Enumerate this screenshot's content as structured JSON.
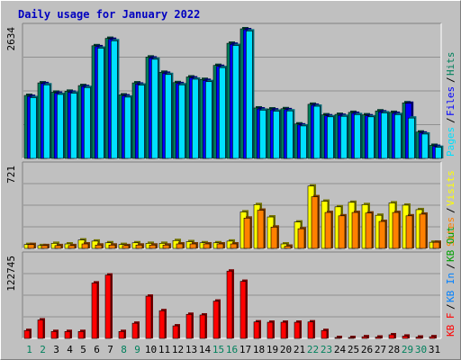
{
  "chart_data": [
    {
      "type": "bar",
      "title": "Daily usage for January 2022",
      "ymax_label": "2634",
      "ylim": [
        0,
        2634
      ],
      "categories": [
        "1",
        "2",
        "3",
        "4",
        "5",
        "6",
        "7",
        "8",
        "9",
        "10",
        "11",
        "12",
        "13",
        "14",
        "15",
        "16",
        "17",
        "18",
        "19",
        "20",
        "21",
        "22",
        "23",
        "24",
        "25",
        "26",
        "27",
        "28",
        "29",
        "30",
        "31"
      ],
      "weekend_days": [
        "1",
        "2",
        "8",
        "9",
        "15",
        "16",
        "22",
        "23",
        "29",
        "30"
      ],
      "legend": [
        "Pages",
        "Files",
        "Hits"
      ],
      "series": [
        {
          "name": "Hits",
          "color": "#00805c",
          "values": [
            1280,
            1535,
            1345,
            1365,
            1480,
            2290,
            2440,
            1290,
            1535,
            2060,
            1750,
            1540,
            1655,
            1605,
            1890,
            2340,
            2634,
            1025,
            1005,
            1010,
            700,
            1100,
            885,
            895,
            935,
            885,
            965,
            935,
            1130,
            535,
            265
          ]
        },
        {
          "name": "Files",
          "color": "#0000ff",
          "values": [
            1260,
            1520,
            1325,
            1345,
            1460,
            2270,
            2420,
            1270,
            1510,
            2040,
            1730,
            1520,
            1635,
            1585,
            1870,
            2320,
            2615,
            1005,
            985,
            990,
            680,
            1080,
            865,
            875,
            915,
            865,
            945,
            915,
            1120,
            515,
            245
          ]
        },
        {
          "name": "Pages",
          "color": "#00e0ff",
          "values": [
            1235,
            1495,
            1300,
            1325,
            1440,
            2240,
            2390,
            1245,
            1490,
            2015,
            1705,
            1495,
            1610,
            1560,
            1845,
            2295,
            2590,
            980,
            960,
            965,
            660,
            1060,
            845,
            855,
            890,
            845,
            925,
            890,
            820,
            495,
            225
          ]
        }
      ]
    },
    {
      "type": "bar",
      "ymax_label": "721",
      "ylim": [
        0,
        721
      ],
      "categories": [
        "1",
        "2",
        "3",
        "4",
        "5",
        "6",
        "7",
        "8",
        "9",
        "10",
        "11",
        "12",
        "13",
        "14",
        "15",
        "16",
        "17",
        "18",
        "19",
        "20",
        "21",
        "22",
        "23",
        "24",
        "25",
        "26",
        "27",
        "28",
        "29",
        "30",
        "31"
      ],
      "legend": [
        "Sites",
        "Visits"
      ],
      "series": [
        {
          "name": "Visits",
          "color": "#ffff00",
          "values": [
            35,
            25,
            45,
            40,
            75,
            65,
            50,
            35,
            50,
            45,
            45,
            70,
            60,
            50,
            50,
            65,
            325,
            390,
            280,
            40,
            235,
            555,
            420,
            370,
            410,
            390,
            295,
            405,
            385,
            345,
            55
          ]
        },
        {
          "name": "Sites",
          "color": "#ff8000",
          "values": [
            35,
            25,
            25,
            25,
            40,
            30,
            30,
            25,
            30,
            30,
            30,
            40,
            40,
            40,
            40,
            40,
            270,
            340,
            190,
            20,
            175,
            460,
            320,
            290,
            320,
            315,
            240,
            320,
            290,
            305,
            55
          ]
        }
      ]
    },
    {
      "type": "bar",
      "ymax_label": "122745",
      "ylim": [
        0,
        122745
      ],
      "categories": [
        "1",
        "2",
        "3",
        "4",
        "5",
        "6",
        "7",
        "8",
        "9",
        "10",
        "11",
        "12",
        "13",
        "14",
        "15",
        "16",
        "17",
        "18",
        "19",
        "20",
        "21",
        "22",
        "23",
        "24",
        "25",
        "26",
        "27",
        "28",
        "29",
        "30",
        "31"
      ],
      "legend": [
        "KB F",
        "KB In",
        "KB Out"
      ],
      "series": [
        {
          "name": "KB F",
          "color": "#ff0000",
          "values": [
            12000,
            28000,
            10500,
            10500,
            10500,
            84000,
            96000,
            10500,
            23000,
            64000,
            42000,
            19000,
            36500,
            35500,
            56500,
            102000,
            86500,
            25000,
            24500,
            24500,
            24500,
            25000,
            12000,
            1000,
            1000,
            2500,
            2000,
            5500,
            3500,
            2000,
            2500
          ]
        }
      ]
    }
  ]
}
